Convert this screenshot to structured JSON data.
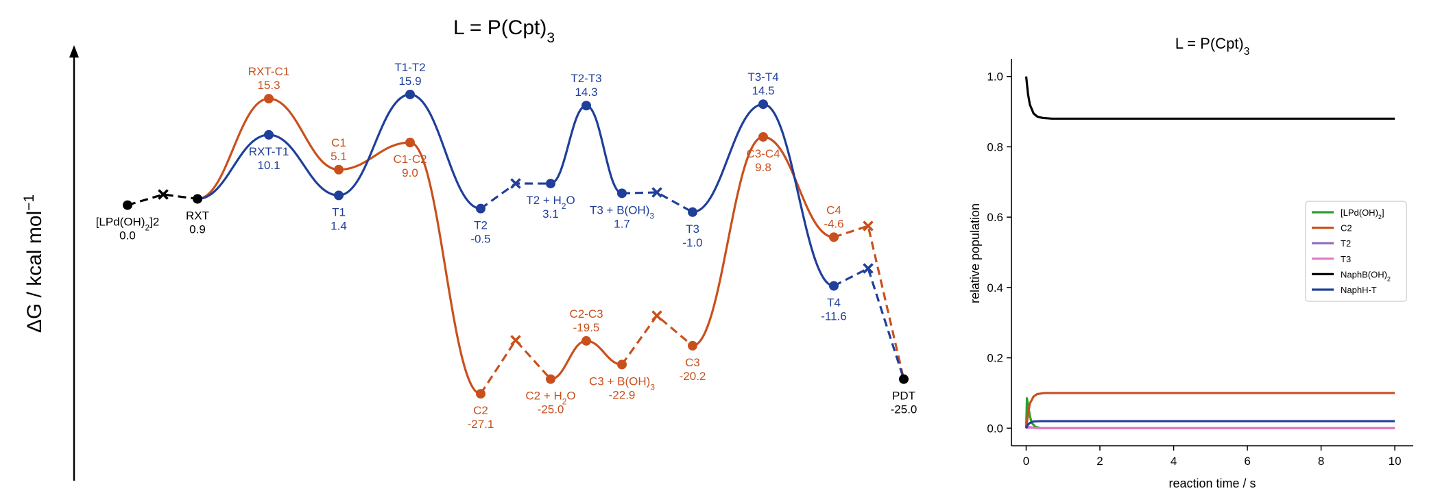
{
  "colors": {
    "orange": "#c9501d",
    "blue": "#1f3f9a",
    "black": "#000000"
  },
  "chart_data": [
    {
      "type": "line",
      "subtype": "energy-profile",
      "title": "L = P(Cpt)3",
      "ylabel": "ΔG / kcal mol−1",
      "states": [
        {
          "id": "LPd",
          "label": "[LPd(OH)2]2",
          "value": "0.0",
          "energy": 0.0,
          "kind": "min",
          "color": "black"
        },
        {
          "id": "RXT",
          "label": "RXT",
          "value": "0.9",
          "energy": 0.9,
          "kind": "min",
          "color": "black"
        },
        {
          "id": "RXT-C1",
          "label": "RXT-C1",
          "value": "15.3",
          "energy": 15.3,
          "kind": "ts",
          "color": "orange"
        },
        {
          "id": "C1",
          "label": "C1",
          "value": "5.1",
          "energy": 5.1,
          "kind": "min",
          "color": "orange"
        },
        {
          "id": "C1-C2",
          "label": "C1-C2",
          "value": "9.0",
          "energy": 9.0,
          "kind": "ts",
          "color": "orange"
        },
        {
          "id": "C2",
          "label": "C2",
          "value": "-27.1",
          "energy": -27.1,
          "kind": "min",
          "color": "orange"
        },
        {
          "id": "C2+H2O",
          "label": "C2 + H2O",
          "value": "-25.0",
          "energy": -25.0,
          "kind": "min",
          "color": "orange"
        },
        {
          "id": "C2-C3",
          "label": "C2-C3",
          "value": "-19.5",
          "energy": -19.5,
          "kind": "ts",
          "color": "orange"
        },
        {
          "id": "C3+BOH3",
          "label": "C3 + B(OH)3",
          "value": "-22.9",
          "energy": -22.9,
          "kind": "min",
          "color": "orange"
        },
        {
          "id": "C3",
          "label": "C3",
          "value": "-20.2",
          "energy": -20.2,
          "kind": "min",
          "color": "orange"
        },
        {
          "id": "C3-C4",
          "label": "C3-C4",
          "value": "9.8",
          "energy": 9.8,
          "kind": "ts",
          "color": "orange"
        },
        {
          "id": "C4",
          "label": "C4",
          "value": "-4.6",
          "energy": -4.6,
          "kind": "min",
          "color": "orange"
        },
        {
          "id": "RXT-T1",
          "label": "RXT-T1",
          "value": "10.1",
          "energy": 10.1,
          "kind": "ts",
          "color": "blue"
        },
        {
          "id": "T1",
          "label": "T1",
          "value": "1.4",
          "energy": 1.4,
          "kind": "min",
          "color": "blue"
        },
        {
          "id": "T1-T2",
          "label": "T1-T2",
          "value": "15.9",
          "energy": 15.9,
          "kind": "ts",
          "color": "blue"
        },
        {
          "id": "T2",
          "label": "T2",
          "value": "-0.5",
          "energy": -0.5,
          "kind": "min",
          "color": "blue"
        },
        {
          "id": "T2+H2O",
          "label": "T2 + H2O",
          "value": "3.1",
          "energy": 3.1,
          "kind": "min",
          "color": "blue"
        },
        {
          "id": "T2-T3",
          "label": "T2-T3",
          "value": "14.3",
          "energy": 14.3,
          "kind": "ts",
          "color": "blue"
        },
        {
          "id": "T3+BOH3",
          "label": "T3 + B(OH)3",
          "value": "1.7",
          "energy": 1.7,
          "kind": "min",
          "color": "blue"
        },
        {
          "id": "T3",
          "label": "T3",
          "value": "-1.0",
          "energy": -1.0,
          "kind": "min",
          "color": "blue"
        },
        {
          "id": "T3-T4",
          "label": "T3-T4",
          "value": "14.5",
          "energy": 14.5,
          "kind": "ts",
          "color": "blue"
        },
        {
          "id": "T4",
          "label": "T4",
          "value": "-11.6",
          "energy": -11.6,
          "kind": "min",
          "color": "blue"
        },
        {
          "id": "PDT",
          "label": "PDT",
          "value": "-25.0",
          "energy": -25.0,
          "kind": "min",
          "color": "black"
        }
      ]
    },
    {
      "type": "line",
      "title": "L = P(Cpt)3",
      "xlabel": "reaction time / s",
      "ylabel": "relative population",
      "xlim": [
        -0.4,
        10.5
      ],
      "ylim": [
        -0.05,
        1.05
      ],
      "xticks": [
        0,
        2,
        4,
        6,
        8,
        10
      ],
      "xtick_labels": [
        "0",
        "2",
        "4",
        "6",
        "8",
        "10"
      ],
      "yticks": [
        0.0,
        0.2,
        0.4,
        0.6,
        0.8,
        1.0
      ],
      "ytick_labels": [
        "0.0",
        "0.2",
        "0.4",
        "0.6",
        "0.8",
        "1.0"
      ],
      "legend_position": "right",
      "series": [
        {
          "name": "[LPd(OH)2]",
          "color": "#2ca02c",
          "x": [
            0,
            0.02,
            0.06,
            0.1,
            0.15,
            0.25,
            0.4,
            10
          ],
          "y": [
            0.0,
            0.085,
            0.06,
            0.035,
            0.015,
            0.004,
            0.0,
            0.0
          ]
        },
        {
          "name": "C2",
          "color": "#c9501d",
          "x": [
            0,
            0.05,
            0.1,
            0.2,
            0.3,
            0.5,
            0.8,
            10
          ],
          "y": [
            0.0,
            0.04,
            0.07,
            0.09,
            0.097,
            0.1,
            0.1,
            0.1
          ]
        },
        {
          "name": "T2",
          "color": "#9467bd",
          "x": [
            0,
            0.1,
            0.3,
            10
          ],
          "y": [
            0.0,
            0.003,
            0.0,
            0.0
          ]
        },
        {
          "name": "T3",
          "color": "#e377c2",
          "x": [
            0,
            0.1,
            0.3,
            10
          ],
          "y": [
            0.0,
            0.002,
            0.0,
            0.0
          ]
        },
        {
          "name": "NaphB(OH)2",
          "color": "#000000",
          "x": [
            0,
            0.05,
            0.1,
            0.2,
            0.3,
            0.45,
            0.7,
            10
          ],
          "y": [
            1.0,
            0.95,
            0.92,
            0.895,
            0.886,
            0.882,
            0.88,
            0.88
          ]
        },
        {
          "name": "NaphH-T",
          "color": "#1f3f9a",
          "x": [
            0,
            0.05,
            0.1,
            0.2,
            0.4,
            10
          ],
          "y": [
            0.0,
            0.01,
            0.015,
            0.019,
            0.02,
            0.02
          ]
        }
      ]
    }
  ]
}
